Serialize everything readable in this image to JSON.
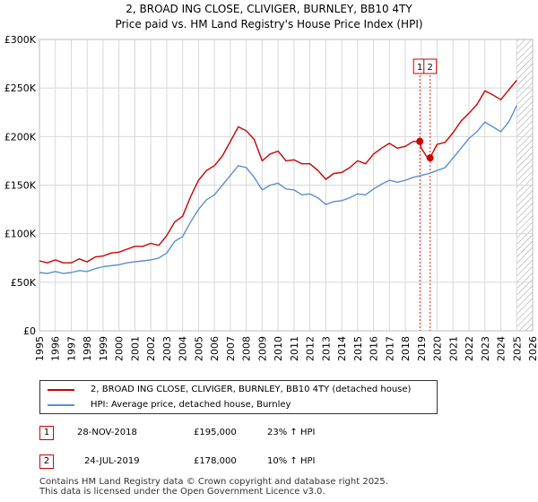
{
  "chart_data": {
    "type": "line",
    "title": "2, BROAD ING CLOSE, CLIVIGER, BURNLEY, BB10 4TY",
    "subtitle": "Price paid vs. HM Land Registry's House Price Index (HPI)",
    "xlim": [
      1995,
      2026
    ],
    "ylim": [
      0,
      300000
    ],
    "y_ticks": [
      0,
      50000,
      100000,
      150000,
      200000,
      250000,
      300000
    ],
    "y_tick_labels": [
      "£0",
      "£50K",
      "£100K",
      "£150K",
      "£200K",
      "£250K",
      "£300K"
    ],
    "x_ticks": [
      1995,
      1996,
      1997,
      1998,
      1999,
      2000,
      2001,
      2002,
      2003,
      2004,
      2005,
      2006,
      2007,
      2008,
      2009,
      2010,
      2011,
      2012,
      2013,
      2014,
      2015,
      2016,
      2017,
      2018,
      2019,
      2020,
      2021,
      2022,
      2023,
      2024,
      2025,
      2026
    ],
    "x_tick_labels": [
      "1995",
      "1996",
      "1997",
      "1998",
      "1999",
      "2000",
      "2001",
      "2002",
      "2003",
      "2004",
      "2005",
      "2006",
      "2007",
      "2008",
      "2009",
      "2010",
      "2011",
      "2012",
      "2013",
      "2014",
      "2015",
      "2016",
      "2017",
      "2018",
      "2019",
      "2020",
      "2021",
      "2022",
      "2023",
      "2024",
      "2025",
      "2026"
    ],
    "grid": true,
    "future_from": 2025.0,
    "series": [
      {
        "name": "2, BROAD ING CLOSE, CLIVIGER, BURNLEY, BB10 4TY (detached house)",
        "color": "#cc0000",
        "points": [
          [
            1995.0,
            72000
          ],
          [
            1995.5,
            70000
          ],
          [
            1996.0,
            73000
          ],
          [
            1996.5,
            70000
          ],
          [
            1997.0,
            70000
          ],
          [
            1997.5,
            74000
          ],
          [
            1998.0,
            71000
          ],
          [
            1998.5,
            76000
          ],
          [
            1999.0,
            77000
          ],
          [
            1999.5,
            80000
          ],
          [
            2000.0,
            81000
          ],
          [
            2000.5,
            84000
          ],
          [
            2001.0,
            87000
          ],
          [
            2001.5,
            87000
          ],
          [
            2002.0,
            90000
          ],
          [
            2002.5,
            88000
          ],
          [
            2003.0,
            98000
          ],
          [
            2003.5,
            112000
          ],
          [
            2004.0,
            118000
          ],
          [
            2004.5,
            138000
          ],
          [
            2005.0,
            155000
          ],
          [
            2005.5,
            165000
          ],
          [
            2006.0,
            170000
          ],
          [
            2006.5,
            180000
          ],
          [
            2007.0,
            195000
          ],
          [
            2007.5,
            210000
          ],
          [
            2008.0,
            206000
          ],
          [
            2008.5,
            197000
          ],
          [
            2009.0,
            175000
          ],
          [
            2009.5,
            182000
          ],
          [
            2010.0,
            185000
          ],
          [
            2010.5,
            175000
          ],
          [
            2011.0,
            176000
          ],
          [
            2011.5,
            172000
          ],
          [
            2012.0,
            172000
          ],
          [
            2012.5,
            165000
          ],
          [
            2013.0,
            156000
          ],
          [
            2013.5,
            162000
          ],
          [
            2014.0,
            163000
          ],
          [
            2014.5,
            168000
          ],
          [
            2015.0,
            175000
          ],
          [
            2015.5,
            172000
          ],
          [
            2016.0,
            182000
          ],
          [
            2016.5,
            188000
          ],
          [
            2017.0,
            193000
          ],
          [
            2017.5,
            188000
          ],
          [
            2018.0,
            190000
          ],
          [
            2018.5,
            195000
          ],
          [
            2018.91,
            195000
          ],
          [
            2019.0,
            188000
          ],
          [
            2019.4,
            178000
          ],
          [
            2019.56,
            178000
          ],
          [
            2019.8,
            186000
          ],
          [
            2020.0,
            192000
          ],
          [
            2020.5,
            194000
          ],
          [
            2021.0,
            204000
          ],
          [
            2021.5,
            216000
          ],
          [
            2022.0,
            224000
          ],
          [
            2022.5,
            233000
          ],
          [
            2023.0,
            247000
          ],
          [
            2023.5,
            243000
          ],
          [
            2024.0,
            238000
          ],
          [
            2024.5,
            248000
          ],
          [
            2025.0,
            258000
          ]
        ]
      },
      {
        "name": "HPI: Average price, detached house, Burnley",
        "color": "#5b8fd0",
        "points": [
          [
            1995.0,
            60000
          ],
          [
            1995.5,
            59000
          ],
          [
            1996.0,
            61000
          ],
          [
            1996.5,
            59000
          ],
          [
            1997.0,
            60000
          ],
          [
            1997.5,
            62000
          ],
          [
            1998.0,
            61000
          ],
          [
            1998.5,
            64000
          ],
          [
            1999.0,
            66000
          ],
          [
            1999.5,
            67000
          ],
          [
            2000.0,
            68000
          ],
          [
            2000.5,
            70000
          ],
          [
            2001.0,
            71000
          ],
          [
            2001.5,
            72000
          ],
          [
            2002.0,
            73000
          ],
          [
            2002.5,
            75000
          ],
          [
            2003.0,
            80000
          ],
          [
            2003.5,
            92000
          ],
          [
            2004.0,
            97000
          ],
          [
            2004.5,
            112000
          ],
          [
            2005.0,
            125000
          ],
          [
            2005.5,
            135000
          ],
          [
            2006.0,
            140000
          ],
          [
            2006.5,
            150000
          ],
          [
            2007.0,
            160000
          ],
          [
            2007.5,
            170000
          ],
          [
            2008.0,
            168000
          ],
          [
            2008.5,
            158000
          ],
          [
            2009.0,
            145000
          ],
          [
            2009.5,
            150000
          ],
          [
            2010.0,
            152000
          ],
          [
            2010.5,
            146000
          ],
          [
            2011.0,
            145000
          ],
          [
            2011.5,
            140000
          ],
          [
            2012.0,
            141000
          ],
          [
            2012.5,
            137000
          ],
          [
            2013.0,
            130000
          ],
          [
            2013.5,
            133000
          ],
          [
            2014.0,
            134000
          ],
          [
            2014.5,
            137000
          ],
          [
            2015.0,
            141000
          ],
          [
            2015.5,
            140000
          ],
          [
            2016.0,
            146000
          ],
          [
            2016.5,
            151000
          ],
          [
            2017.0,
            155000
          ],
          [
            2017.5,
            153000
          ],
          [
            2018.0,
            155000
          ],
          [
            2018.5,
            158000
          ],
          [
            2019.0,
            160000
          ],
          [
            2019.5,
            162000
          ],
          [
            2020.0,
            165000
          ],
          [
            2020.5,
            168000
          ],
          [
            2021.0,
            178000
          ],
          [
            2021.5,
            188000
          ],
          [
            2022.0,
            198000
          ],
          [
            2022.5,
            205000
          ],
          [
            2023.0,
            215000
          ],
          [
            2023.5,
            210000
          ],
          [
            2024.0,
            205000
          ],
          [
            2024.5,
            215000
          ],
          [
            2025.0,
            232000
          ]
        ]
      }
    ],
    "annotations": [
      {
        "label": "1",
        "x": 2018.91,
        "y": 195000
      },
      {
        "label": "2",
        "x": 2019.56,
        "y": 178000
      }
    ]
  },
  "legend": {
    "items": [
      {
        "label": "2, BROAD ING CLOSE, CLIVIGER, BURNLEY, BB10 4TY (detached house)",
        "color": "#cc0000"
      },
      {
        "label": "HPI: Average price, detached house, Burnley",
        "color": "#5b8fd0"
      }
    ]
  },
  "transactions": [
    {
      "num": "1",
      "date": "28-NOV-2018",
      "price": "£195,000",
      "hpi": "23% ↑ HPI"
    },
    {
      "num": "2",
      "date": "24-JUL-2019",
      "price": "£178,000",
      "hpi": "10% ↑ HPI"
    }
  ],
  "footer": {
    "line1": "Contains HM Land Registry data © Crown copyright and database right 2025.",
    "line2": "This data is licensed under the Open Government Licence v3.0."
  }
}
